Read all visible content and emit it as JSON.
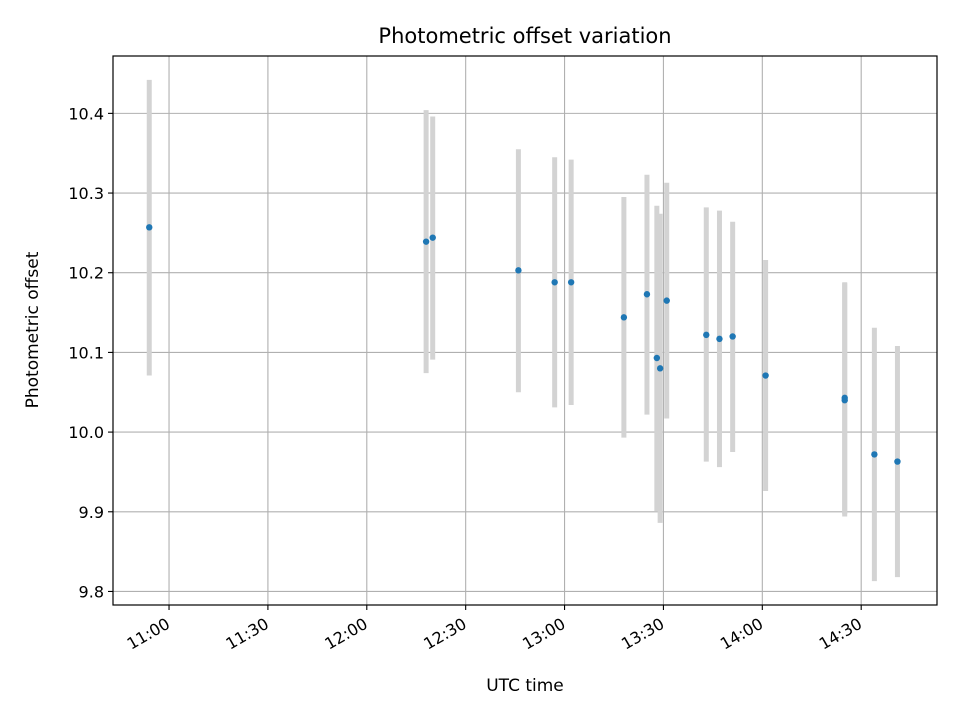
{
  "chart_data": {
    "type": "scatter",
    "title": "Photometric offset variation",
    "xlabel": "UTC time",
    "ylabel": "Photometric offset",
    "x_ticks": [
      "11:00",
      "11:30",
      "12:00",
      "12:30",
      "13:00",
      "13:30",
      "14:00",
      "14:30"
    ],
    "y_ticks": [
      "9.8",
      "9.9",
      "10.0",
      "10.1",
      "10.2",
      "10.3",
      "10.4"
    ],
    "xlim": [
      "10:43",
      "14:53"
    ],
    "ylim": [
      9.783,
      10.472
    ],
    "grid": true,
    "colors": {
      "point": "#1f77b4",
      "errorbar": "#d3d3d3",
      "grid": "#b0b0b0"
    },
    "points": [
      {
        "time": "10:54",
        "value": 10.257,
        "err_low": 10.071,
        "err_high": 10.442
      },
      {
        "time": "12:18",
        "value": 10.239,
        "err_low": 10.074,
        "err_high": 10.404
      },
      {
        "time": "12:20",
        "value": 10.244,
        "err_low": 10.091,
        "err_high": 10.396
      },
      {
        "time": "12:46",
        "value": 10.203,
        "err_low": 10.05,
        "err_high": 10.355
      },
      {
        "time": "12:57",
        "value": 10.188,
        "err_low": 10.031,
        "err_high": 10.345
      },
      {
        "time": "13:02",
        "value": 10.188,
        "err_low": 10.034,
        "err_high": 10.342
      },
      {
        "time": "13:18",
        "value": 10.144,
        "err_low": 9.993,
        "err_high": 10.295
      },
      {
        "time": "13:25",
        "value": 10.173,
        "err_low": 10.022,
        "err_high": 10.323
      },
      {
        "time": "13:28",
        "value": 10.093,
        "err_low": 9.901,
        "err_high": 10.284
      },
      {
        "time": "13:29",
        "value": 10.08,
        "err_low": 9.886,
        "err_high": 10.274
      },
      {
        "time": "13:31",
        "value": 10.165,
        "err_low": 10.017,
        "err_high": 10.313
      },
      {
        "time": "13:43",
        "value": 10.122,
        "err_low": 9.963,
        "err_high": 10.282
      },
      {
        "time": "13:47",
        "value": 10.117,
        "err_low": 9.956,
        "err_high": 10.278
      },
      {
        "time": "13:51",
        "value": 10.12,
        "err_low": 9.975,
        "err_high": 10.264
      },
      {
        "time": "14:01",
        "value": 10.071,
        "err_low": 9.926,
        "err_high": 10.216
      },
      {
        "time": "14:25",
        "value": 10.04,
        "err_low": 9.894,
        "err_high": 10.187
      },
      {
        "time": "14:25",
        "value": 10.043,
        "err_low": 9.897,
        "err_high": 10.188
      },
      {
        "time": "14:34",
        "value": 9.972,
        "err_low": 9.813,
        "err_high": 10.131
      },
      {
        "time": "14:41",
        "value": 9.963,
        "err_low": 9.818,
        "err_high": 10.108
      }
    ]
  }
}
